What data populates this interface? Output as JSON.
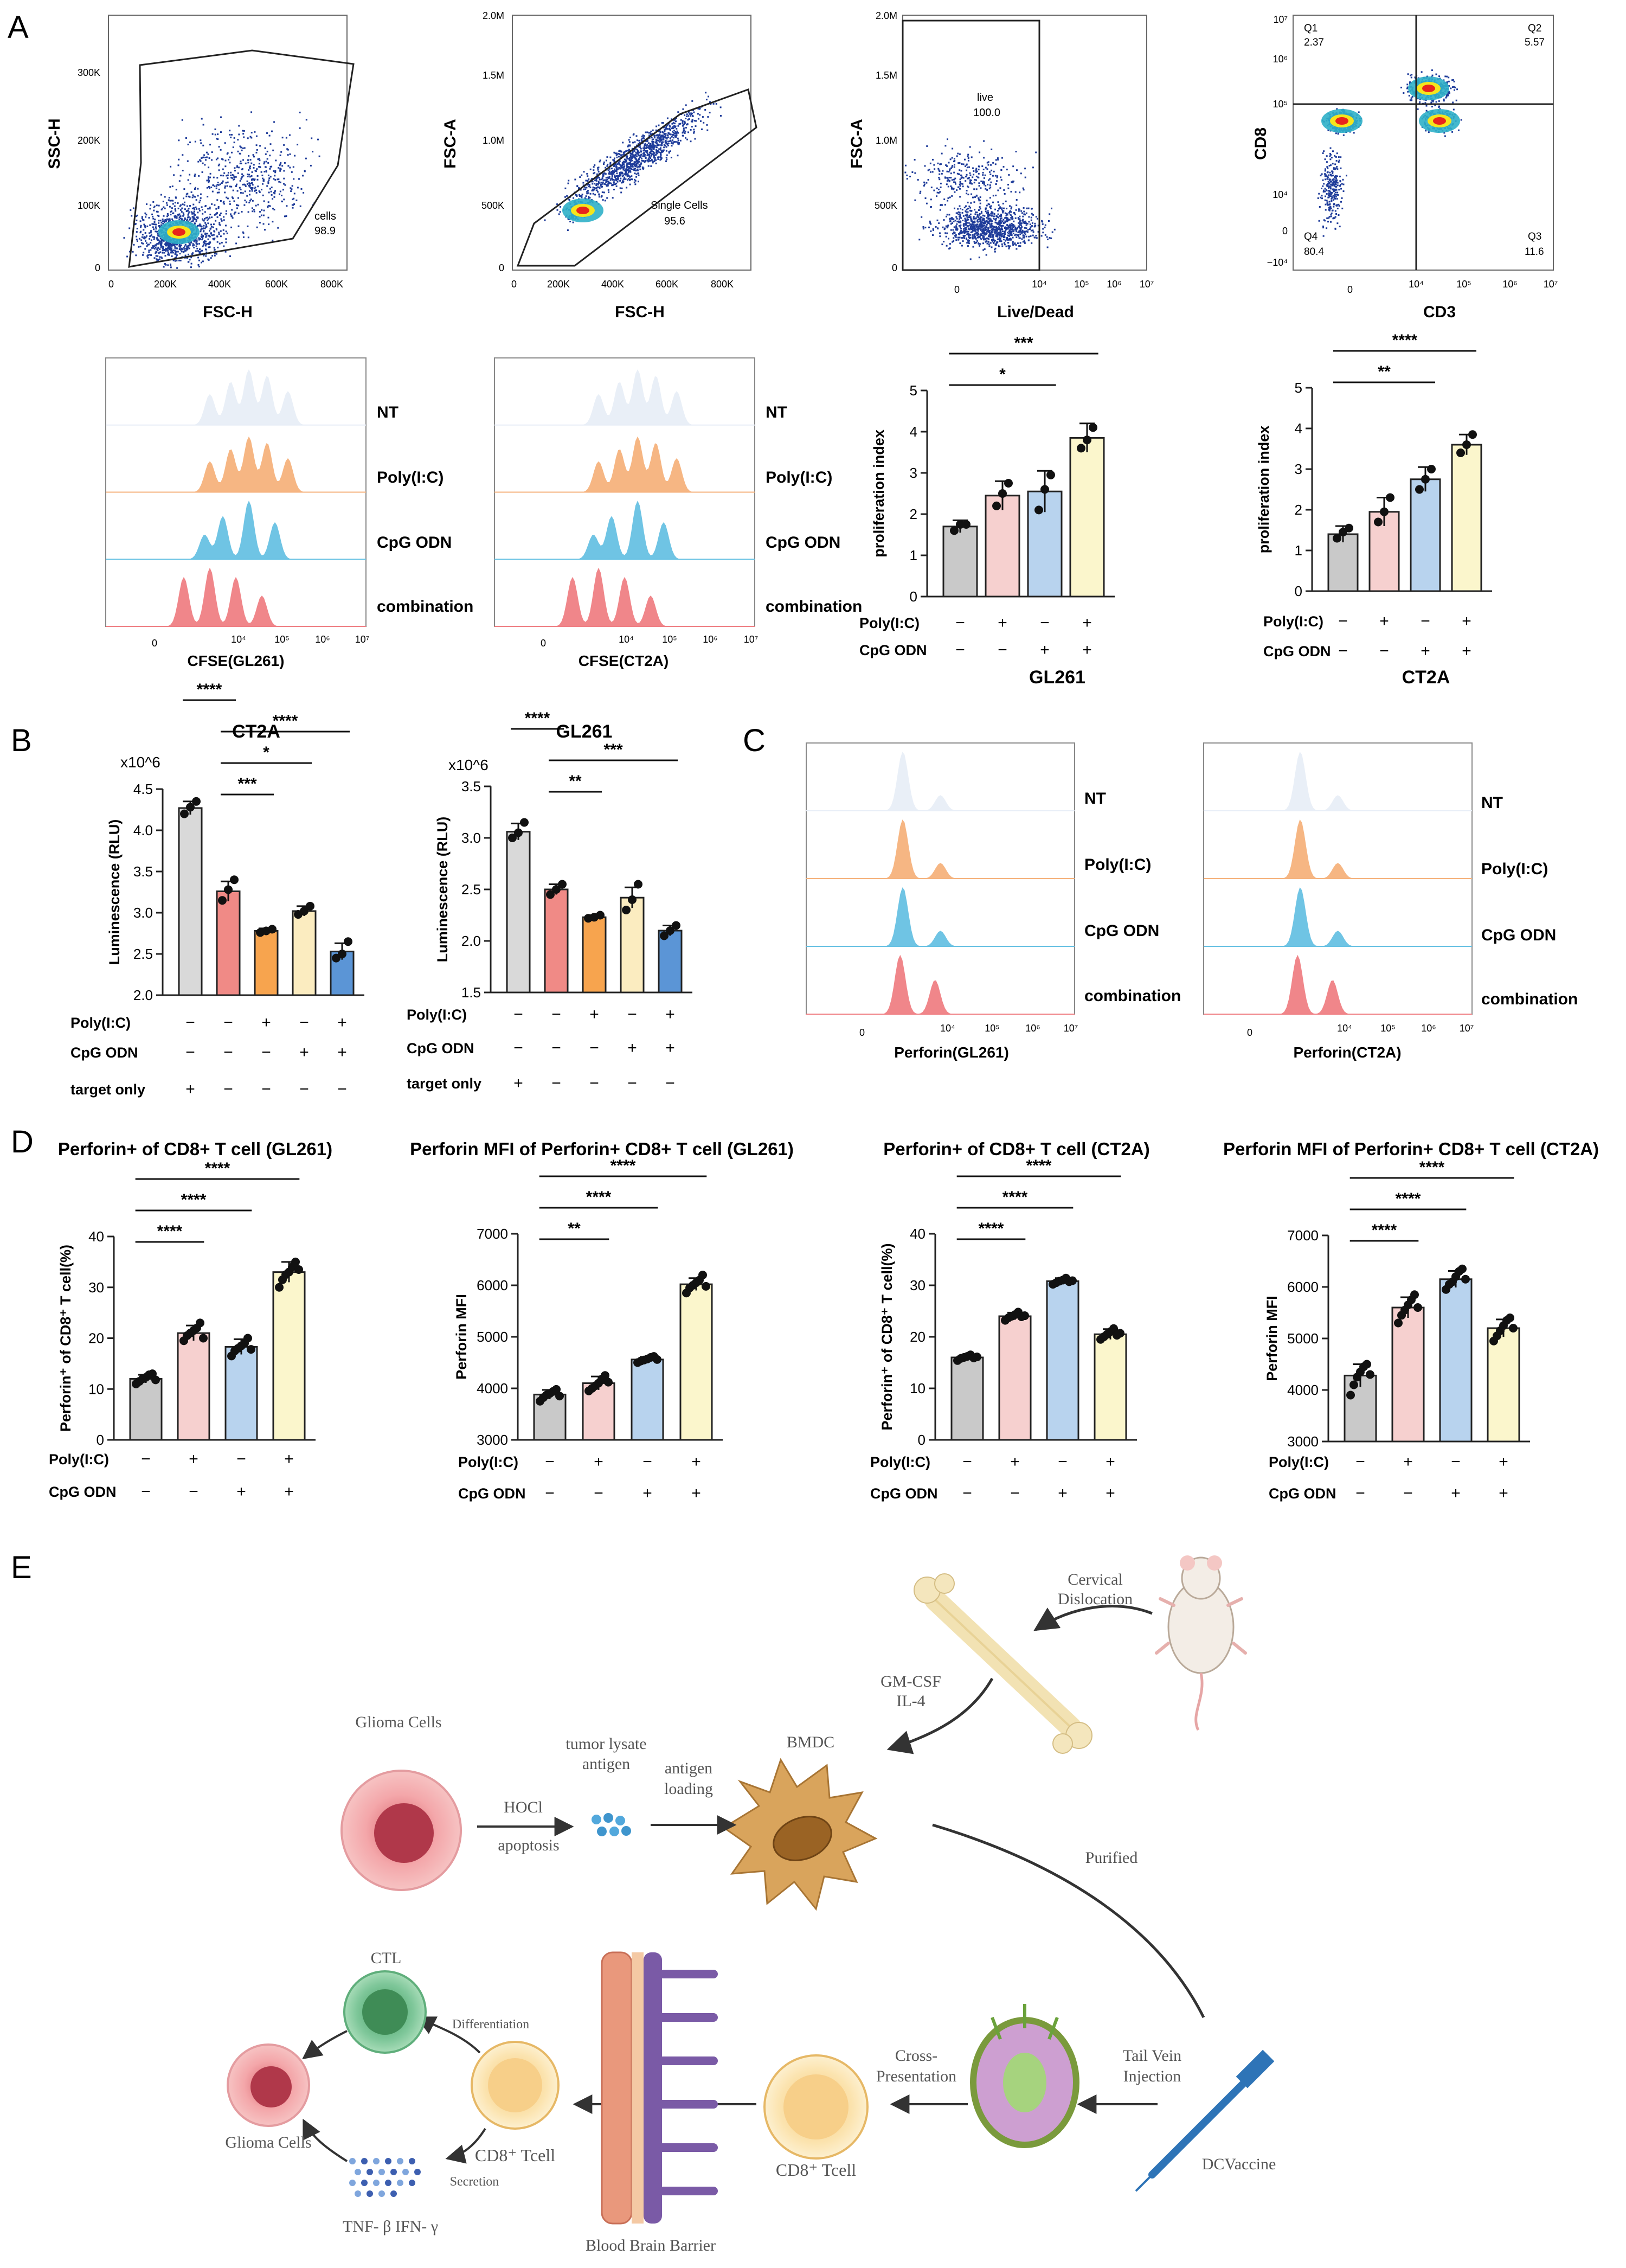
{
  "panel_labels": {
    "A": "A",
    "B": "B",
    "C": "C",
    "D": "D",
    "E": "E"
  },
  "colors": {
    "nt": "#c9c9c9",
    "polyic": "#f6d0cf",
    "cpg": "#b8d3ee",
    "combo": "#fbf6cc",
    "b_nt": "#cfcfcf",
    "b_target": "#d9d9d9",
    "b_poly": "#f08a86",
    "b_cpg": "#f7a44e",
    "b_combo_cpg": "#fbecc0",
    "b_combo": "#5b95d6",
    "hist_nt": "#e8eef7",
    "hist_poly": "#f5b27c",
    "hist_cpg": "#67c1e3",
    "hist_combo": "#ef7f84",
    "density_low": "#1f3c9a",
    "density_mid": "#2fb0c8",
    "density_high": "#e8241c"
  },
  "flow": [
    {
      "ylabel": "SSC-H",
      "xlabel": "FSC-H",
      "yticks": [
        "0",
        "100K",
        "200K",
        "300K"
      ],
      "xticks": [
        "0",
        "200K",
        "400K",
        "600K",
        "800K"
      ],
      "gate_name": "cells",
      "gate_value": "98.9"
    },
    {
      "ylabel": "FSC-A",
      "xlabel": "FSC-H",
      "yticks": [
        "0",
        "500K",
        "1.0M",
        "1.5M",
        "2.0M"
      ],
      "xticks": [
        "0",
        "200K",
        "400K",
        "600K",
        "800K"
      ],
      "gate_name": "Single Cells",
      "gate_value": "95.6"
    },
    {
      "ylabel": "FSC-A",
      "xlabel": "Live/Dead",
      "yticks": [
        "0",
        "500K",
        "1.0M",
        "1.5M",
        "2.0M"
      ],
      "xticks": [
        "0",
        "10⁴",
        "10⁵",
        "10⁶",
        "10⁷"
      ],
      "gate_name": "live",
      "gate_value": "100.0"
    },
    {
      "ylabel": "CD8",
      "xlabel": "CD3",
      "yticks": [
        "−10⁴",
        "0",
        "10⁴",
        "10⁵",
        "10⁶",
        "10⁷"
      ],
      "xticks": [
        "0",
        "10⁴",
        "10⁵",
        "10⁶",
        "10⁷"
      ],
      "quadrants": [
        {
          "name": "Q1",
          "value": "2.37"
        },
        {
          "name": "Q2",
          "value": "5.57"
        },
        {
          "name": "Q3",
          "value": "11.6"
        },
        {
          "name": "Q4",
          "value": "80.4"
        }
      ]
    }
  ],
  "hist_labels": [
    "NT",
    "Poly(I:C)",
    "CpG ODN",
    "combination"
  ],
  "cfse_hist": [
    {
      "xlabel": "CFSE(GL261)"
    },
    {
      "xlabel": "CFSE(CT2A)"
    }
  ],
  "perforin_hist": [
    {
      "xlabel": "Perforin(GL261)"
    },
    {
      "xlabel": "Perforin(CT2A)"
    }
  ],
  "hist_xticks": [
    "0",
    "10⁴",
    "10⁵",
    "10⁶",
    "10⁷"
  ],
  "treat_rows": {
    "poly": "Poly(I:C)",
    "cpg": "CpG ODN",
    "target": "target only"
  },
  "signs": {
    "plus": "+",
    "minus": "−"
  },
  "chart_data": [
    {
      "id": "prolif_gl261",
      "type": "bar",
      "title": "GL261",
      "ylabel": "proliferation index",
      "ylim": [
        0,
        5
      ],
      "yticks": [
        0,
        1,
        2,
        3,
        4,
        5
      ],
      "categories": [
        "NT",
        "Poly(I:C)",
        "CpG ODN",
        "combination"
      ],
      "values": [
        1.7,
        2.45,
        2.55,
        3.85
      ],
      "errors": [
        0.15,
        0.35,
        0.5,
        0.35
      ],
      "points": [
        [
          1.6,
          1.75,
          1.75
        ],
        [
          2.2,
          2.5,
          2.75
        ],
        [
          2.1,
          2.6,
          2.95
        ],
        [
          3.6,
          3.8,
          4.1
        ]
      ],
      "poly": [
        "−",
        "+",
        "−",
        "+"
      ],
      "cpg": [
        "−",
        "−",
        "+",
        "+"
      ],
      "sig": [
        {
          "from": 0,
          "to": 3,
          "label": "***"
        },
        {
          "from": 0,
          "to": 2,
          "label": "*"
        }
      ]
    },
    {
      "id": "prolif_ct2a",
      "type": "bar",
      "title": "CT2A",
      "ylabel": "proliferation index",
      "ylim": [
        0,
        5
      ],
      "yticks": [
        0,
        1,
        2,
        3,
        4,
        5
      ],
      "categories": [
        "NT",
        "Poly(I:C)",
        "CpG ODN",
        "combination"
      ],
      "values": [
        1.4,
        1.95,
        2.75,
        3.6
      ],
      "errors": [
        0.2,
        0.35,
        0.3,
        0.25
      ],
      "points": [
        [
          1.3,
          1.45,
          1.55
        ],
        [
          1.7,
          1.95,
          2.3
        ],
        [
          2.5,
          2.75,
          3.0
        ],
        [
          3.4,
          3.6,
          3.85
        ]
      ],
      "poly": [
        "−",
        "+",
        "−",
        "+"
      ],
      "cpg": [
        "−",
        "−",
        "+",
        "+"
      ],
      "sig": [
        {
          "from": 0,
          "to": 3,
          "label": "****"
        },
        {
          "from": 0,
          "to": 2,
          "label": "**"
        }
      ]
    },
    {
      "id": "lum_ct2a",
      "type": "bar",
      "title": "CT2A",
      "ylabel": "Luminescence (RLU)",
      "multiplier": "x10^6",
      "ylim": [
        2.0,
        4.5
      ],
      "yticks": [
        2.0,
        2.5,
        3.0,
        3.5,
        4.0,
        4.5
      ],
      "categories": [
        "target only",
        "NT",
        "Poly(I:C)",
        "CpG ODN",
        "combination"
      ],
      "values": [
        4.27,
        3.26,
        2.78,
        3.02,
        2.53
      ],
      "errors": [
        0.08,
        0.12,
        0.03,
        0.06,
        0.1
      ],
      "points": [
        [
          4.2,
          4.28,
          4.35
        ],
        [
          3.15,
          3.28,
          3.4
        ],
        [
          2.76,
          2.78,
          2.8
        ],
        [
          2.98,
          3.02,
          3.08
        ],
        [
          2.45,
          2.5,
          2.65
        ]
      ],
      "poly": [
        "−",
        "−",
        "+",
        "−",
        "+"
      ],
      "cpg": [
        "−",
        "−",
        "−",
        "+",
        "+"
      ],
      "target": [
        "+",
        "−",
        "−",
        "−",
        "−"
      ],
      "sig": [
        {
          "from": 0,
          "to": 1,
          "label": "****"
        },
        {
          "from": 1,
          "to": 4,
          "label": "****"
        },
        {
          "from": 1,
          "to": 3,
          "label": "*"
        },
        {
          "from": 1,
          "to": 2,
          "label": "***"
        }
      ]
    },
    {
      "id": "lum_gl261",
      "type": "bar",
      "title": "GL261",
      "ylabel": "Luminescence (RLU)",
      "multiplier": "x10^6",
      "ylim": [
        1.5,
        3.5
      ],
      "yticks": [
        1.5,
        2.0,
        2.5,
        3.0,
        3.5
      ],
      "categories": [
        "target only",
        "NT",
        "Poly(I:C)",
        "CpG ODN",
        "combination"
      ],
      "values": [
        3.06,
        2.5,
        2.23,
        2.42,
        2.1
      ],
      "errors": [
        0.08,
        0.05,
        0.02,
        0.1,
        0.05
      ],
      "points": [
        [
          3.0,
          3.05,
          3.15
        ],
        [
          2.45,
          2.5,
          2.55
        ],
        [
          2.22,
          2.23,
          2.25
        ],
        [
          2.3,
          2.4,
          2.55
        ],
        [
          2.05,
          2.1,
          2.15
        ]
      ],
      "poly": [
        "−",
        "−",
        "+",
        "−",
        "+"
      ],
      "cpg": [
        "−",
        "−",
        "−",
        "+",
        "+"
      ],
      "target": [
        "+",
        "−",
        "−",
        "−",
        "−"
      ],
      "sig": [
        {
          "from": 0,
          "to": 1,
          "label": "****"
        },
        {
          "from": 1,
          "to": 4,
          "label": "***"
        },
        {
          "from": 1,
          "to": 2,
          "label": "**"
        }
      ]
    },
    {
      "id": "perf_pct_gl261",
      "type": "bar",
      "title": "Perforin+ of CD8+ T cell (GL261)",
      "ylabel": "Perforin⁺ of CD8⁺ T cell(%)",
      "ylim": [
        0,
        40
      ],
      "yticks": [
        0,
        10,
        20,
        30,
        40
      ],
      "categories": [
        "NT",
        "Poly(I:C)",
        "CpG ODN",
        "combination"
      ],
      "values": [
        12,
        21,
        18.3,
        33
      ],
      "errors": [
        0.8,
        1.5,
        1.5,
        2
      ],
      "points": [
        [
          11,
          11.5,
          12,
          12.3,
          12.8,
          13,
          11.8
        ],
        [
          19.5,
          20.5,
          21,
          21.5,
          22,
          23,
          20
        ],
        [
          16.5,
          17.5,
          18,
          18.5,
          19,
          20,
          17.8
        ],
        [
          30,
          31.5,
          32.5,
          33,
          34,
          35,
          33.5
        ]
      ],
      "poly": [
        "−",
        "+",
        "−",
        "+"
      ],
      "cpg": [
        "−",
        "−",
        "+",
        "+"
      ],
      "sig": [
        {
          "from": 0,
          "to": 3,
          "label": "****"
        },
        {
          "from": 0,
          "to": 2,
          "label": "****"
        },
        {
          "from": 0,
          "to": 1,
          "label": "****"
        }
      ]
    },
    {
      "id": "perf_mfi_gl261",
      "type": "bar",
      "title": "Perforin MFI of Perforin+ CD8+ T cell (GL261)",
      "ylabel": "Perforin MFI",
      "ylim": [
        3000,
        7000
      ],
      "yticks": [
        3000,
        4000,
        5000,
        6000,
        7000
      ],
      "categories": [
        "NT",
        "Poly(I:C)",
        "CpG ODN",
        "combination"
      ],
      "values": [
        3880,
        4100,
        4560,
        6020
      ],
      "errors": [
        90,
        130,
        50,
        120
      ],
      "points": [
        [
          3750,
          3820,
          3870,
          3900,
          3940,
          3980,
          3850
        ],
        [
          3950,
          4000,
          4050,
          4100,
          4180,
          4250,
          4120
        ],
        [
          4500,
          4530,
          4550,
          4570,
          4600,
          4620,
          4560
        ],
        [
          5850,
          5950,
          6000,
          6050,
          6100,
          6200,
          5980
        ]
      ],
      "poly": [
        "−",
        "+",
        "−",
        "+"
      ],
      "cpg": [
        "−",
        "−",
        "+",
        "+"
      ],
      "sig": [
        {
          "from": 0,
          "to": 3,
          "label": "****"
        },
        {
          "from": 0,
          "to": 2,
          "label": "****"
        },
        {
          "from": 0,
          "to": 1,
          "label": "**"
        }
      ]
    },
    {
      "id": "perf_pct_ct2a",
      "type": "bar",
      "title": "Perforin+ of CD8+ T cell (CT2A)",
      "ylabel": "Perforin⁺ of CD8⁺ T cell(%)",
      "ylim": [
        0,
        40
      ],
      "yticks": [
        0,
        10,
        20,
        30,
        40
      ],
      "categories": [
        "NT",
        "Poly(I:C)",
        "CpG ODN",
        "combination"
      ],
      "values": [
        16,
        24,
        30.8,
        20.5
      ],
      "errors": [
        0.5,
        0.7,
        0.6,
        1.0
      ],
      "points": [
        [
          15.4,
          15.8,
          16,
          16.2,
          16.5,
          15.9,
          16.1
        ],
        [
          23.2,
          23.7,
          24,
          24.3,
          24.8,
          23.9,
          24.1
        ],
        [
          30.2,
          30.5,
          30.8,
          31,
          31.4,
          30.7,
          30.9
        ],
        [
          19.5,
          20,
          20.5,
          21,
          21.6,
          20.3,
          20.7
        ]
      ],
      "poly": [
        "−",
        "+",
        "−",
        "+"
      ],
      "cpg": [
        "−",
        "−",
        "+",
        "+"
      ],
      "sig": [
        {
          "from": 0,
          "to": 3,
          "label": "****"
        },
        {
          "from": 0,
          "to": 2,
          "label": "****"
        },
        {
          "from": 0,
          "to": 1,
          "label": "****"
        }
      ]
    },
    {
      "id": "perf_mfi_ct2a",
      "type": "bar",
      "title": "Perforin MFI of Perforin+ CD8+ T cell (CT2A)",
      "ylabel": "Perforin MFI",
      "ylim": [
        3000,
        7000
      ],
      "yticks": [
        3000,
        4000,
        5000,
        6000,
        7000
      ],
      "categories": [
        "NT",
        "Poly(I:C)",
        "CpG ODN",
        "combination"
      ],
      "values": [
        4280,
        5600,
        6150,
        5200
      ],
      "errors": [
        220,
        200,
        160,
        170
      ],
      "points": [
        [
          3900,
          4100,
          4250,
          4350,
          4450,
          4500,
          4300
        ],
        [
          5300,
          5450,
          5550,
          5650,
          5750,
          5850,
          5600
        ],
        [
          5950,
          6050,
          6100,
          6200,
          6300,
          6350,
          6150
        ],
        [
          4950,
          5050,
          5150,
          5250,
          5350,
          5400,
          5200
        ]
      ],
      "poly": [
        "−",
        "+",
        "−",
        "+"
      ],
      "cpg": [
        "−",
        "−",
        "+",
        "+"
      ],
      "sig": [
        {
          "from": 0,
          "to": 3,
          "label": "****"
        },
        {
          "from": 0,
          "to": 2,
          "label": "****"
        },
        {
          "from": 0,
          "to": 1,
          "label": "****"
        }
      ]
    }
  ],
  "schematic": {
    "glioma_cells": "Glioma Cells",
    "hocl": "HOCl",
    "apoptosis": "apoptosis",
    "tumor_lysate": "tumor lysate",
    "antigen": "antigen",
    "antigen2": "antigen",
    "loading": "loading",
    "bmdc": "BMDC",
    "gmcsf": "GM-CSF",
    "il4": "IL-4",
    "cervical": "Cervical",
    "dislocation": "Dislocation",
    "purified": "Purified",
    "tail_vein": "Tail Vein",
    "injection": "Injection",
    "dcvaccine": "DCVaccine",
    "cross": "Cross-",
    "presentation": "Presentation",
    "cd8_tcell": "CD8⁺ Tcell",
    "cd8_tcell2": "CD8⁺ Tcell",
    "bbb": "Blood Brain Barrier",
    "ctl": "CTL",
    "differentiation": "Differentiation",
    "secretion": "Secretion",
    "glioma_cells2": "Glioma Cells",
    "cytokines": "TNF- β IFN- γ"
  }
}
